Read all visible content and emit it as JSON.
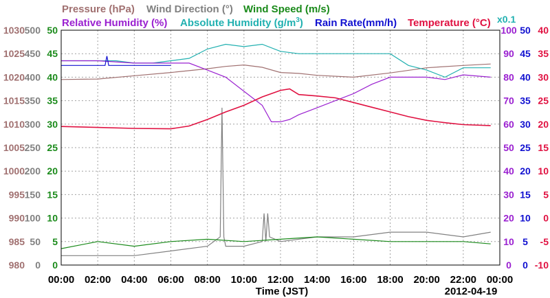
{
  "colors": {
    "pressure": "#a07070",
    "wind_direction": "#808080",
    "wind_speed": "#1a8a1a",
    "relative_humidity": "#9a20d0",
    "absolute_humidity": "#20b0b0",
    "rain_rate": "#1010d0",
    "temperature": "#e01040",
    "grid": "#a0a0a0"
  },
  "legend": {
    "pressure": "Pressure (hPa)",
    "wind_direction": "Wind Direction (°)",
    "wind_speed": "Wind Speed (m/s)",
    "relative_humidity": "Relative Humidity (%)",
    "absolute_humidity_prefix": "Absolute Humidity (g/m",
    "absolute_humidity_sup": "3",
    "absolute_humidity_suffix": ")",
    "rain_rate": "Rain Rate(mm/h)",
    "temperature": "Temperature (°C)",
    "ah_scale": "x0.1"
  },
  "axes": {
    "pressure_ticks": [
      "1030",
      "1025",
      "1020",
      "1015",
      "1010",
      "1005",
      "1000",
      "995",
      "990",
      "985",
      "980"
    ],
    "wind_direction_ticks": [
      "500",
      "450",
      "400",
      "350",
      "300",
      "250",
      "200",
      "150",
      "100",
      "50",
      "0"
    ],
    "wind_speed_ticks": [
      "50",
      "45",
      "40",
      "35",
      "30",
      "25",
      "20",
      "15",
      "10",
      "5",
      "0"
    ],
    "humidity_ticks": [
      "100",
      "90",
      "80",
      "70",
      "60",
      "50",
      "40",
      "30",
      "20",
      "10",
      "0"
    ],
    "rain_ticks": [
      "50",
      "45",
      "40",
      "35",
      "30",
      "25",
      "20",
      "15",
      "10",
      "5",
      "0"
    ],
    "temperature_ticks": [
      "40",
      "35",
      "30",
      "25",
      "20",
      "15",
      "10",
      "5",
      "0",
      "-5",
      "-10"
    ],
    "time_ticks": [
      "00:00",
      "02:00",
      "04:00",
      "06:00",
      "08:00",
      "10:00",
      "12:00",
      "14:00",
      "16:00",
      "18:00",
      "20:00",
      "22:00",
      "00:00"
    ],
    "xlabel": "Time (JST)",
    "date": "2012-04-19"
  },
  "chart_data": {
    "type": "line",
    "x_unit": "hours",
    "xlim": [
      0,
      24
    ],
    "grid": true,
    "series": [
      {
        "name": "Pressure (hPa)",
        "key": "pressure",
        "ylim": [
          980,
          1030
        ],
        "x": [
          0,
          2,
          4,
          6,
          8,
          9,
          10,
          11,
          12,
          13,
          14,
          16,
          18,
          20,
          22,
          23.5
        ],
        "values": [
          1019.5,
          1019.6,
          1020.3,
          1021.0,
          1021.8,
          1022.3,
          1022.6,
          1022.1,
          1021.0,
          1020.8,
          1020.4,
          1020.0,
          1020.9,
          1022.0,
          1022.5,
          1022.8
        ]
      },
      {
        "name": "Relative Humidity (%)",
        "key": "relative_humidity",
        "ylim": [
          0,
          100
        ],
        "x": [
          0,
          2,
          4,
          6,
          7,
          8,
          9,
          10,
          11,
          11.5,
          12,
          12.5,
          13,
          14,
          15,
          16,
          17,
          18,
          19,
          20,
          21,
          22,
          23.5
        ],
        "values": [
          87,
          87,
          86,
          86,
          86,
          83,
          80,
          74,
          68,
          61,
          61,
          62,
          64,
          67,
          70,
          73,
          77,
          80,
          80,
          80,
          79,
          81,
          80
        ]
      },
      {
        "name": "Absolute Humidity (g/m3)",
        "key": "absolute_humidity",
        "ylim": [
          0,
          100
        ],
        "x": [
          0,
          1,
          2,
          2.5,
          3,
          4,
          5,
          6,
          7,
          8,
          9,
          10,
          11,
          12,
          13,
          14,
          15,
          16,
          17,
          18,
          19,
          20,
          21,
          22,
          23.5
        ],
        "values": [
          87,
          87,
          87,
          87,
          87,
          86,
          86,
          87,
          88,
          92,
          94,
          93,
          94,
          91,
          90,
          90,
          90,
          90,
          90,
          90,
          85,
          83,
          80,
          84,
          84
        ]
      },
      {
        "name": "Rain Rate(mm/h)",
        "key": "rain_rate",
        "ylim": [
          0,
          50
        ],
        "x": [
          0,
          2.4,
          2.5,
          2.6,
          6
        ],
        "values": [
          42.5,
          42.5,
          44.5,
          42.5,
          42.5
        ]
      },
      {
        "name": "Temperature (°C)",
        "key": "temperature",
        "ylim": [
          -10,
          40
        ],
        "x": [
          0,
          2,
          4,
          6,
          7,
          8,
          9,
          10,
          11,
          12,
          12.5,
          13,
          14,
          15,
          16,
          17,
          18,
          19,
          20,
          21,
          22,
          23.5
        ],
        "values": [
          19.5,
          19.3,
          19.1,
          19.0,
          19.6,
          21.0,
          22.6,
          24.0,
          25.8,
          27.2,
          27.5,
          26.3,
          26.0,
          25.6,
          24.6,
          23.6,
          22.6,
          21.6,
          20.8,
          20.3,
          19.9,
          19.7
        ]
      },
      {
        "name": "Wind Speed (m/s)",
        "key": "wind_speed",
        "ylim": [
          0,
          50
        ],
        "x": [
          0,
          2,
          4,
          6,
          8,
          10,
          12,
          14,
          16,
          18,
          20,
          22,
          23.5
        ],
        "values": [
          3.5,
          5,
          4,
          5,
          5.5,
          5,
          5.5,
          6,
          5.5,
          5,
          5,
          5,
          4.5
        ]
      },
      {
        "name": "Wind Direction (°)",
        "key": "wind_direction",
        "ylim": [
          0,
          500
        ],
        "x": [
          0,
          2,
          4,
          6,
          8,
          8.7,
          8.8,
          8.9,
          9,
          10,
          11,
          11.1,
          11.2,
          11.3,
          11.4,
          12,
          14,
          16,
          18,
          20,
          22,
          23.5
        ],
        "values": [
          20,
          20,
          20,
          30,
          40,
          60,
          335,
          60,
          40,
          40,
          50,
          110,
          50,
          110,
          60,
          50,
          60,
          60,
          70,
          70,
          60,
          70
        ]
      }
    ]
  }
}
